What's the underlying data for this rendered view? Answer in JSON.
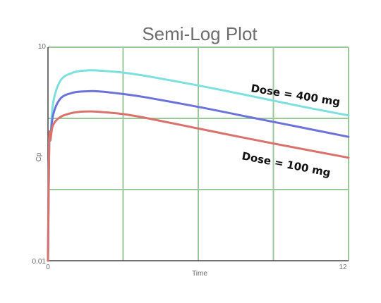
{
  "chart_data": {
    "type": "line",
    "title": "Semi-Log Plot",
    "xlabel": "Time",
    "ylabel": "Cp",
    "xlim": [
      0,
      12
    ],
    "ylim": [
      0.01,
      10
    ],
    "y_scale": "log",
    "grid": true,
    "x_tick_labels": [
      "0",
      "12"
    ],
    "y_tick_labels": [
      "10",
      "0.01"
    ],
    "x_grid_values": [
      3,
      6,
      9
    ],
    "y_grid_values": [
      0.1,
      1
    ],
    "series": [
      {
        "name": "Dose = 400 mg",
        "color": "#7de0df",
        "x": [
          0,
          0.05,
          0.1,
          0.2,
          0.5,
          1,
          1.5,
          2,
          3,
          4,
          6,
          8,
          10,
          12
        ],
        "values": [
          0.01,
          0.5,
          0.5,
          1.6,
          3.4,
          4.4,
          4.7,
          4.7,
          4.4,
          3.9,
          2.9,
          2.1,
          1.5,
          1.1
        ]
      },
      {
        "name": "",
        "color": "#6b72d8",
        "x": [
          0,
          0.05,
          0.1,
          0.2,
          0.5,
          1,
          1.5,
          2,
          3,
          4,
          6,
          8,
          10,
          12
        ],
        "values": [
          0.01,
          0.5,
          0.5,
          1.1,
          1.9,
          2.3,
          2.4,
          2.4,
          2.2,
          1.95,
          1.45,
          1.05,
          0.76,
          0.55
        ]
      },
      {
        "name": "Dose = 100 mg",
        "color": "#d9726d",
        "x": [
          0,
          0.05,
          0.1,
          0.2,
          0.5,
          1,
          1.5,
          2,
          3,
          4,
          6,
          8,
          10,
          12
        ],
        "values": [
          0.01,
          0.5,
          0.5,
          0.8,
          1.05,
          1.2,
          1.25,
          1.24,
          1.15,
          1.0,
          0.72,
          0.52,
          0.38,
          0.28
        ]
      }
    ],
    "annotations": [
      {
        "text": "Dose = 400 mg",
        "series": "Dose = 400 mg"
      },
      {
        "text": "Dose = 100 mg",
        "series": "Dose = 100 mg"
      }
    ],
    "colors": {
      "grid": "#9cc79a",
      "axis": "#444444"
    }
  }
}
